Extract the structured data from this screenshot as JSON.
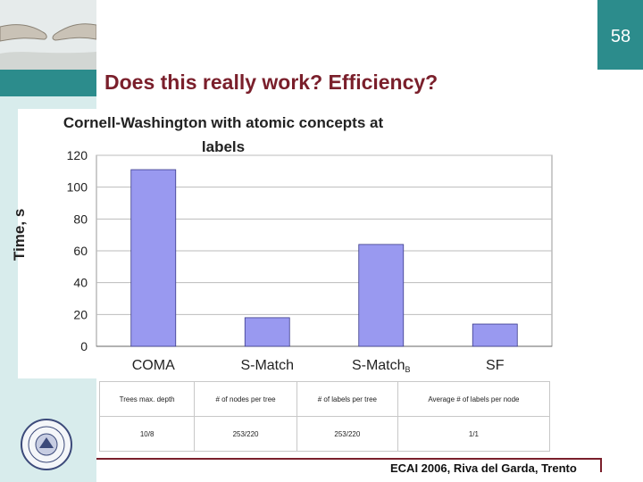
{
  "slide": {
    "number": "58",
    "title": "Does this really work? Efficiency?",
    "footer": "ECAI 2006, Riva del Garda, Trento"
  },
  "table": {
    "headers": [
      "Trees max. depth",
      "# of nodes per tree",
      "# of labels per tree",
      "Average # of labels per node"
    ],
    "values": [
      "10/8",
      "253/220",
      "253/220",
      "1/1"
    ]
  },
  "chart_data": {
    "type": "bar",
    "title_lines": [
      "Cornell-Washington with atomic concepts at",
      "labels"
    ],
    "ylabel": "Time, s",
    "categories": [
      {
        "label": "COMA",
        "sub": ""
      },
      {
        "label": "S-Match",
        "sub": ""
      },
      {
        "label": "S-Match",
        "sub": "B"
      },
      {
        "label": "SF",
        "sub": ""
      }
    ],
    "values": [
      111,
      18,
      64,
      14
    ],
    "ylim": [
      0,
      120
    ],
    "yticks": [
      0,
      20,
      40,
      60,
      80,
      100,
      120
    ],
    "bar_color": "#9999f0",
    "grid": true
  }
}
